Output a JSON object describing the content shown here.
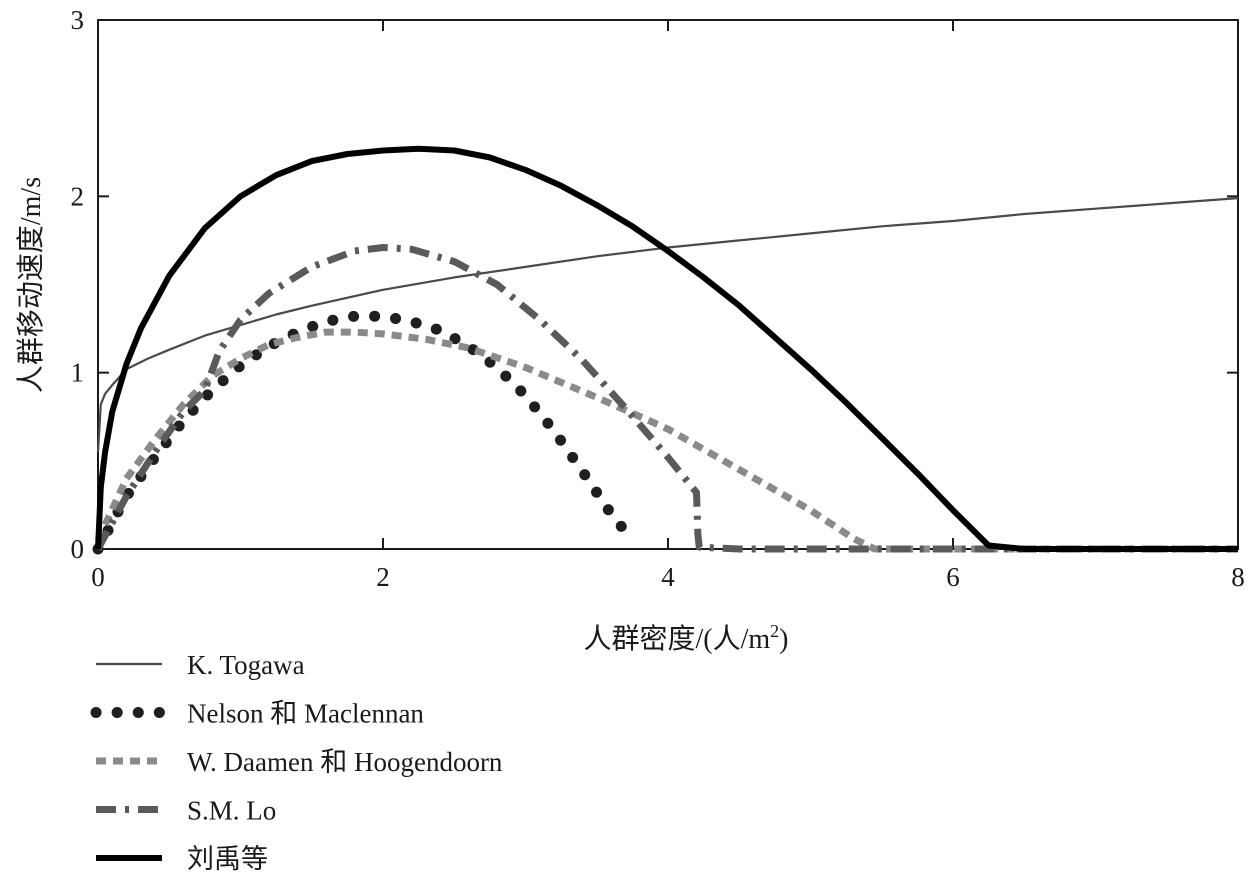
{
  "chart_data": {
    "type": "line",
    "xlabel": "人群密度/(人/m",
    "xlabel_sup": "2",
    "xlabel_end": ")",
    "ylabel": "人群移动速度/m/s",
    "xlim": [
      0,
      8
    ],
    "ylim": [
      0,
      3
    ],
    "x_ticks": [
      "0",
      "2",
      "4",
      "6",
      "8"
    ],
    "y_ticks": [
      "0",
      "1",
      "2",
      "3"
    ],
    "grid": false,
    "legend_position": "bottom-left",
    "series": [
      {
        "name": "K. Togawa",
        "color": "#4a4a4a",
        "style": "solid-thin",
        "x": [
          0,
          0.02,
          0.05,
          0.1,
          0.2,
          0.35,
          0.5,
          0.75,
          1,
          1.25,
          1.5,
          2,
          2.5,
          3,
          3.5,
          4,
          4.5,
          5,
          5.5,
          6,
          6.5,
          7,
          7.5,
          8
        ],
        "y": [
          0.55,
          0.82,
          0.88,
          0.93,
          1.02,
          1.08,
          1.13,
          1.21,
          1.27,
          1.33,
          1.38,
          1.47,
          1.54,
          1.6,
          1.66,
          1.71,
          1.75,
          1.79,
          1.83,
          1.86,
          1.9,
          1.93,
          1.96,
          1.99
        ]
      },
      {
        "name": "Nelson 和 Maclennan",
        "color": "#1f1f1f",
        "style": "dotted",
        "x": [
          0,
          0.2,
          0.4,
          0.6,
          0.8,
          1,
          1.2,
          1.4,
          1.6,
          1.8,
          2,
          2.2,
          2.4,
          2.6,
          2.8,
          3,
          3.2,
          3.4,
          3.6,
          3.74
        ],
        "y": [
          0,
          0.3,
          0.52,
          0.73,
          0.9,
          1.04,
          1.15,
          1.23,
          1.29,
          1.32,
          1.32,
          1.29,
          1.24,
          1.15,
          1.03,
          0.87,
          0.67,
          0.44,
          0.2,
          0.06
        ]
      },
      {
        "name": "W. Daamen 和 Hoogendoorn",
        "color": "#8a8a8a",
        "style": "dashed",
        "x": [
          0,
          0.2,
          0.4,
          0.6,
          0.8,
          1,
          1.2,
          1.4,
          1.6,
          1.8,
          2,
          2.3,
          2.6,
          3,
          3.5,
          4,
          4.5,
          5,
          5.3,
          5.45,
          6,
          7,
          8
        ],
        "y": [
          0.05,
          0.4,
          0.62,
          0.82,
          0.98,
          1.08,
          1.16,
          1.2,
          1.23,
          1.23,
          1.22,
          1.19,
          1.14,
          1.03,
          0.86,
          0.68,
          0.45,
          0.22,
          0.06,
          0,
          0,
          0,
          0
        ]
      },
      {
        "name": "S.M. Lo",
        "color": "#5a5a5a",
        "style": "dash-dot",
        "x": [
          0,
          0.2,
          0.4,
          0.6,
          0.75,
          0.85,
          1,
          1.2,
          1.5,
          1.8,
          2,
          2.2,
          2.5,
          2.8,
          3.1,
          3.4,
          3.7,
          4,
          4.2,
          4.21,
          4.22,
          4.5,
          6,
          8
        ],
        "y": [
          0,
          0.3,
          0.55,
          0.78,
          0.9,
          1.12,
          1.3,
          1.45,
          1.6,
          1.69,
          1.71,
          1.7,
          1.63,
          1.5,
          1.3,
          1.07,
          0.8,
          0.52,
          0.32,
          0.08,
          0.01,
          0,
          0,
          0
        ]
      },
      {
        "name": "刘禹等",
        "color": "#000000",
        "style": "solid-thick",
        "x": [
          0,
          0.02,
          0.05,
          0.1,
          0.2,
          0.3,
          0.5,
          0.75,
          1,
          1.25,
          1.5,
          1.75,
          2,
          2.25,
          2.5,
          2.75,
          3,
          3.25,
          3.5,
          3.75,
          4,
          4.25,
          4.5,
          4.75,
          5,
          5.25,
          5.5,
          5.75,
          6,
          6.25,
          6.5,
          6.7,
          7,
          8
        ],
        "y": [
          0,
          0.35,
          0.55,
          0.78,
          1.05,
          1.25,
          1.55,
          1.82,
          2.0,
          2.12,
          2.2,
          2.24,
          2.26,
          2.27,
          2.26,
          2.22,
          2.15,
          2.06,
          1.95,
          1.83,
          1.69,
          1.54,
          1.38,
          1.2,
          1.02,
          0.83,
          0.63,
          0.43,
          0.22,
          0.02,
          0.0,
          0.0,
          0,
          0
        ]
      }
    ]
  }
}
